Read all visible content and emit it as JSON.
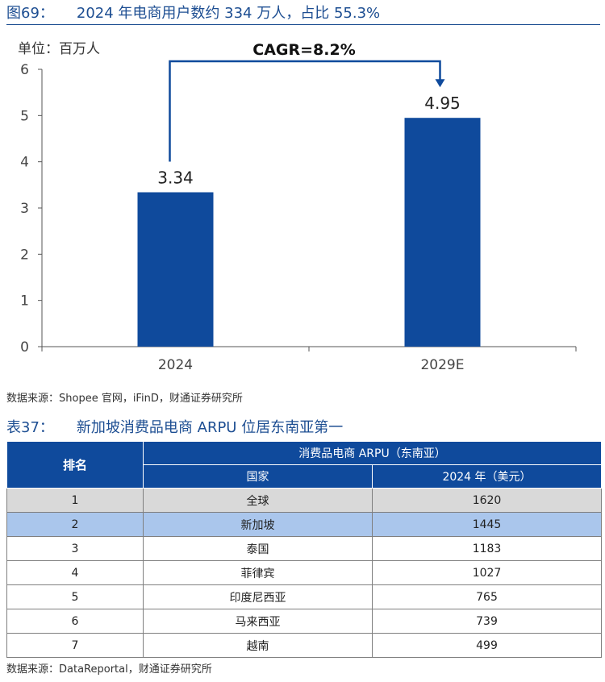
{
  "figure": {
    "number": "图69：",
    "title": "2024 年电商用户数约 334 万人，占比 55.3%",
    "source": "数据来源：Shopee 官网，iFinD，财通证券研究所"
  },
  "chart_data": {
    "type": "bar",
    "unit_label": "单位：百万人",
    "categories": [
      "2024",
      "2029E"
    ],
    "values": [
      3.34,
      4.95
    ],
    "data_labels": [
      "3.34",
      "4.95"
    ],
    "ylim": [
      0,
      6
    ],
    "yticks": [
      "0",
      "1",
      "2",
      "3",
      "4",
      "5",
      "6"
    ],
    "annotation": "CAGR=8.2%",
    "bar_color": "#0f4a9c",
    "grid": false
  },
  "table": {
    "number": "表37：",
    "title": "新加坡消费品电商 ARPU 位居东南亚第一",
    "header_rank": "排名",
    "header_group": "消费品电商 ARPU（东南亚）",
    "header_country": "国家",
    "header_value": "2024 年（美元）",
    "rows": [
      {
        "rank": "1",
        "country": "全球",
        "value": "1620"
      },
      {
        "rank": "2",
        "country": "新加坡",
        "value": "1445"
      },
      {
        "rank": "3",
        "country": "泰国",
        "value": "1183"
      },
      {
        "rank": "4",
        "country": "菲律宾",
        "value": "1027"
      },
      {
        "rank": "5",
        "country": "印度尼西亚",
        "value": "765"
      },
      {
        "rank": "6",
        "country": "马来西亚",
        "value": "739"
      },
      {
        "rank": "7",
        "country": "越南",
        "value": "499"
      }
    ],
    "source": "数据来源：DataReportal，财通证券研究所",
    "header_color": "#0f4a9c",
    "global_row_color": "#d9d9d9",
    "highlight_row_color": "#aac6ec"
  }
}
